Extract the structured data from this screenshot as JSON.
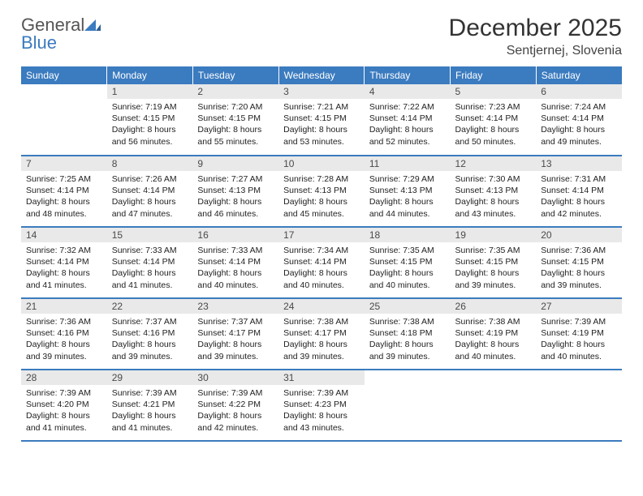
{
  "logo": {
    "line1": "General",
    "line2": "Blue"
  },
  "title": "December 2025",
  "subtitle": "Sentjernej, Slovenia",
  "colors": {
    "header_bg": "#3b7bbf",
    "header_text": "#ffffff",
    "daynum_bg": "#e9e9e9",
    "row_border": "#3b7bbf",
    "body_text": "#222222"
  },
  "day_headers": [
    "Sunday",
    "Monday",
    "Tuesday",
    "Wednesday",
    "Thursday",
    "Friday",
    "Saturday"
  ],
  "weeks": [
    [
      {
        "blank": true
      },
      {
        "n": "1",
        "sunrise": "7:19 AM",
        "sunset": "4:15 PM",
        "daylight": "8 hours and 56 minutes."
      },
      {
        "n": "2",
        "sunrise": "7:20 AM",
        "sunset": "4:15 PM",
        "daylight": "8 hours and 55 minutes."
      },
      {
        "n": "3",
        "sunrise": "7:21 AM",
        "sunset": "4:15 PM",
        "daylight": "8 hours and 53 minutes."
      },
      {
        "n": "4",
        "sunrise": "7:22 AM",
        "sunset": "4:14 PM",
        "daylight": "8 hours and 52 minutes."
      },
      {
        "n": "5",
        "sunrise": "7:23 AM",
        "sunset": "4:14 PM",
        "daylight": "8 hours and 50 minutes."
      },
      {
        "n": "6",
        "sunrise": "7:24 AM",
        "sunset": "4:14 PM",
        "daylight": "8 hours and 49 minutes."
      }
    ],
    [
      {
        "n": "7",
        "sunrise": "7:25 AM",
        "sunset": "4:14 PM",
        "daylight": "8 hours and 48 minutes."
      },
      {
        "n": "8",
        "sunrise": "7:26 AM",
        "sunset": "4:14 PM",
        "daylight": "8 hours and 47 minutes."
      },
      {
        "n": "9",
        "sunrise": "7:27 AM",
        "sunset": "4:13 PM",
        "daylight": "8 hours and 46 minutes."
      },
      {
        "n": "10",
        "sunrise": "7:28 AM",
        "sunset": "4:13 PM",
        "daylight": "8 hours and 45 minutes."
      },
      {
        "n": "11",
        "sunrise": "7:29 AM",
        "sunset": "4:13 PM",
        "daylight": "8 hours and 44 minutes."
      },
      {
        "n": "12",
        "sunrise": "7:30 AM",
        "sunset": "4:13 PM",
        "daylight": "8 hours and 43 minutes."
      },
      {
        "n": "13",
        "sunrise": "7:31 AM",
        "sunset": "4:14 PM",
        "daylight": "8 hours and 42 minutes."
      }
    ],
    [
      {
        "n": "14",
        "sunrise": "7:32 AM",
        "sunset": "4:14 PM",
        "daylight": "8 hours and 41 minutes."
      },
      {
        "n": "15",
        "sunrise": "7:33 AM",
        "sunset": "4:14 PM",
        "daylight": "8 hours and 41 minutes."
      },
      {
        "n": "16",
        "sunrise": "7:33 AM",
        "sunset": "4:14 PM",
        "daylight": "8 hours and 40 minutes."
      },
      {
        "n": "17",
        "sunrise": "7:34 AM",
        "sunset": "4:14 PM",
        "daylight": "8 hours and 40 minutes."
      },
      {
        "n": "18",
        "sunrise": "7:35 AM",
        "sunset": "4:15 PM",
        "daylight": "8 hours and 40 minutes."
      },
      {
        "n": "19",
        "sunrise": "7:35 AM",
        "sunset": "4:15 PM",
        "daylight": "8 hours and 39 minutes."
      },
      {
        "n": "20",
        "sunrise": "7:36 AM",
        "sunset": "4:15 PM",
        "daylight": "8 hours and 39 minutes."
      }
    ],
    [
      {
        "n": "21",
        "sunrise": "7:36 AM",
        "sunset": "4:16 PM",
        "daylight": "8 hours and 39 minutes."
      },
      {
        "n": "22",
        "sunrise": "7:37 AM",
        "sunset": "4:16 PM",
        "daylight": "8 hours and 39 minutes."
      },
      {
        "n": "23",
        "sunrise": "7:37 AM",
        "sunset": "4:17 PM",
        "daylight": "8 hours and 39 minutes."
      },
      {
        "n": "24",
        "sunrise": "7:38 AM",
        "sunset": "4:17 PM",
        "daylight": "8 hours and 39 minutes."
      },
      {
        "n": "25",
        "sunrise": "7:38 AM",
        "sunset": "4:18 PM",
        "daylight": "8 hours and 39 minutes."
      },
      {
        "n": "26",
        "sunrise": "7:38 AM",
        "sunset": "4:19 PM",
        "daylight": "8 hours and 40 minutes."
      },
      {
        "n": "27",
        "sunrise": "7:39 AM",
        "sunset": "4:19 PM",
        "daylight": "8 hours and 40 minutes."
      }
    ],
    [
      {
        "n": "28",
        "sunrise": "7:39 AM",
        "sunset": "4:20 PM",
        "daylight": "8 hours and 41 minutes."
      },
      {
        "n": "29",
        "sunrise": "7:39 AM",
        "sunset": "4:21 PM",
        "daylight": "8 hours and 41 minutes."
      },
      {
        "n": "30",
        "sunrise": "7:39 AM",
        "sunset": "4:22 PM",
        "daylight": "8 hours and 42 minutes."
      },
      {
        "n": "31",
        "sunrise": "7:39 AM",
        "sunset": "4:23 PM",
        "daylight": "8 hours and 43 minutes."
      },
      {
        "blank": true
      },
      {
        "blank": true
      },
      {
        "blank": true
      }
    ]
  ],
  "labels": {
    "sunrise": "Sunrise:",
    "sunset": "Sunset:",
    "daylight": "Daylight:"
  }
}
